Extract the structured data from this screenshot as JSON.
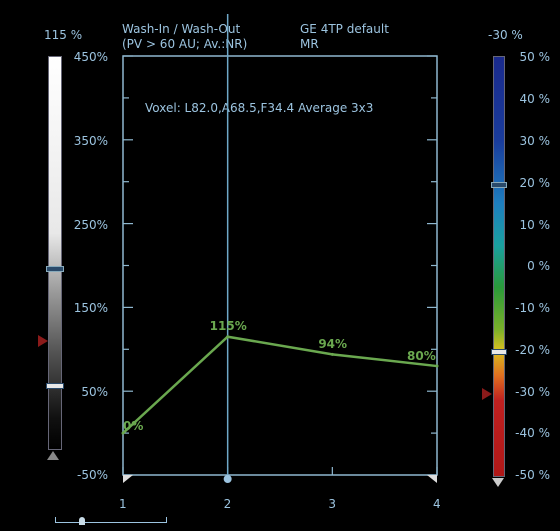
{
  "header": {
    "mode_title": "Wash-In / Wash-Out",
    "mode_subtitle": "(PV > 60 AU; Av.:NR)",
    "protocol": "GE 4TP default",
    "modality": "MR",
    "voxel_info": "Voxel: L82.0,A68.5,F34.4 Average 3x3"
  },
  "left_scale": {
    "top_value": "115 %",
    "ticks": [
      "450%",
      "350%",
      "250%",
      "150%",
      "50%",
      "-50%"
    ],
    "colors": {
      "bar_top": "#ffffff",
      "bar_bottom": "#000000",
      "marker": "#8b1a1a"
    }
  },
  "right_scale": {
    "top_value": "-30 %",
    "ticks": [
      "50 %",
      "40 %",
      "30 %",
      "20 %",
      "10 %",
      "0 %",
      "-10 %",
      "-20 %",
      "-30 %",
      "-40 %",
      "-50 %"
    ],
    "colors": {
      "top": "#1a2a8c",
      "mid_blue": "#1e7fc0",
      "green": "#2a9a3a",
      "yellow": "#d8c020",
      "red": "#c02020"
    }
  },
  "chart_data": {
    "type": "line",
    "x": [
      1,
      2,
      3,
      4
    ],
    "x_tick_labels": [
      "1",
      "2",
      "3",
      "4"
    ],
    "y": [
      0,
      115,
      94,
      80
    ],
    "point_labels": [
      "0%",
      "115%",
      "94%",
      "80%"
    ],
    "ylim": [
      -50,
      450
    ],
    "line_color": "#6aa84f",
    "cursor_x": 2
  }
}
